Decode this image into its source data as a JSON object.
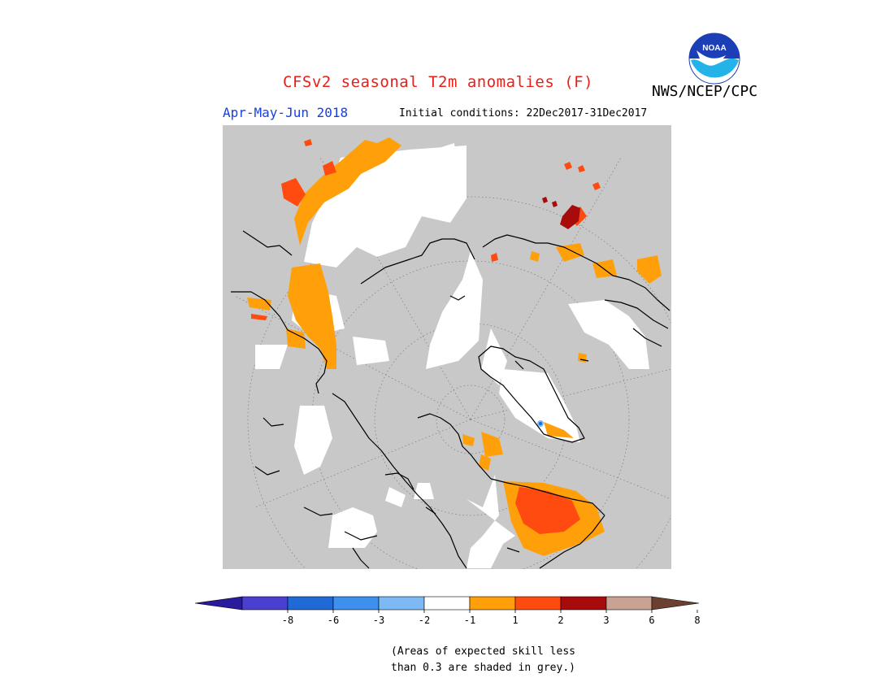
{
  "header": {
    "title": "CFSv2 seasonal T2m anomalies (F)",
    "agency": "NWS/NCEP/CPC",
    "logo_text": "NOAA",
    "season": "Apr-May-Jun 2018",
    "initial_conditions": "Initial conditions: 22Dec2017-31Dec2017"
  },
  "legend": {
    "labels": [
      "-8",
      "-6",
      "-3",
      "-2",
      "-1",
      "1",
      "2",
      "3",
      "6",
      "8"
    ],
    "colors": [
      "#2a1a9e",
      "#4a3fd0",
      "#1f6ad6",
      "#3e90ee",
      "#7db9f4",
      "#ffffff",
      "#ffa00a",
      "#ff4a10",
      "#a80b0b",
      "#c9a293",
      "#6b4030"
    ]
  },
  "footnote": {
    "line1": "(Areas of expected skill less",
    "line2": "than 0.3 are shaded in grey.)"
  },
  "colors": {
    "grey": "#c8c8c8",
    "title_red": "#e8201a",
    "season_blue": "#1a3fe0"
  }
}
